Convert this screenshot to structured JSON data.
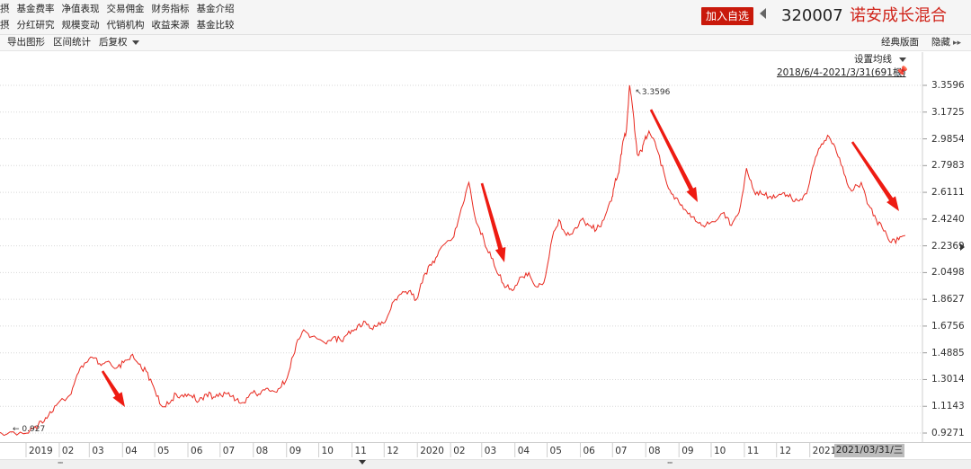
{
  "menu": {
    "row1_edge": "摂",
    "row1": [
      "基金费率",
      "净值表现",
      "交易佣金",
      "财务指标",
      "基金介绍"
    ],
    "row2_edge": "摂",
    "row2": [
      "分红研究",
      "规模变动",
      "代销机构",
      "收益来源",
      "基金比较"
    ]
  },
  "header": {
    "add_button": "加入自选",
    "fund_code": "320007",
    "fund_name": "诺安成长混合"
  },
  "toolbar": {
    "export": "导出图形",
    "interval_stats": "区间统计",
    "adjust": "后复权",
    "classic_layout": "经典版面",
    "hide": "隐藏"
  },
  "chart_controls": {
    "ma_setting": "设置均线",
    "range": "2018/6/4-2021/3/31(691根)"
  },
  "scrollbar": {
    "grip": "''''''"
  },
  "chart_data": {
    "type": "line",
    "y_tick_labels": [
      "3.3596",
      "3.1725",
      "2.9854",
      "2.7983",
      "2.6111",
      "2.4240",
      "2.2369",
      "2.0498",
      "1.8627",
      "1.6756",
      "1.4885",
      "1.3014",
      "1.1143",
      "0.9271"
    ],
    "ylim": [
      0.9271,
      3.3596
    ],
    "x_tick_labels": [
      "2019",
      "02",
      "03",
      "04",
      "05",
      "06",
      "07",
      "08",
      "09",
      "10",
      "11",
      "12",
      "2020",
      "02",
      "03",
      "04",
      "05",
      "06",
      "07",
      "08",
      "09",
      "10",
      "11",
      "12",
      "2021"
    ],
    "current_date_label": "2021/03/31/三",
    "annotations": {
      "max_label": "3.3596",
      "min_label": "0.927"
    },
    "line_color": "#e8281e",
    "arrow_color": "#ee1b12",
    "series": [
      {
        "x": [
          "2018-12-03",
          "2018-12-17",
          "2019-01-02",
          "2019-01-08",
          "2019-01-15",
          "2019-01-22",
          "2019-01-29",
          "2019-02-12",
          "2019-02-19",
          "2019-02-26",
          "2019-03-05",
          "2019-03-12",
          "2019-03-19",
          "2019-03-26",
          "2019-04-02",
          "2019-04-09",
          "2019-04-16",
          "2019-04-23",
          "2019-04-30",
          "2019-05-07",
          "2019-05-14",
          "2019-05-21",
          "2019-05-28",
          "2019-06-04",
          "2019-06-11",
          "2019-06-18",
          "2019-06-25",
          "2019-07-02",
          "2019-07-09",
          "2019-07-16",
          "2019-07-23",
          "2019-07-30",
          "2019-08-06",
          "2019-08-13",
          "2019-08-20",
          "2019-08-27",
          "2019-09-03",
          "2019-09-10",
          "2019-09-17",
          "2019-09-24",
          "2019-10-08",
          "2019-10-15",
          "2019-10-22",
          "2019-10-29",
          "2019-11-05",
          "2019-11-12",
          "2019-11-19",
          "2019-11-26",
          "2019-12-03",
          "2019-12-10",
          "2019-12-17",
          "2019-12-24",
          "2019-12-31",
          "2020-01-07",
          "2020-01-14",
          "2020-01-21",
          "2020-02-04",
          "2020-02-11",
          "2020-02-18",
          "2020-02-25",
          "2020-03-03",
          "2020-03-10",
          "2020-03-17",
          "2020-03-24",
          "2020-03-31",
          "2020-04-07",
          "2020-04-14",
          "2020-04-21",
          "2020-04-28",
          "2020-05-06",
          "2020-05-12",
          "2020-05-19",
          "2020-05-26",
          "2020-06-02",
          "2020-06-09",
          "2020-06-16",
          "2020-06-23",
          "2020-06-30",
          "2020-07-03",
          "2020-07-07",
          "2020-07-10",
          "2020-07-14",
          "2020-07-17",
          "2020-07-21",
          "2020-07-24",
          "2020-07-28",
          "2020-07-31",
          "2020-08-04",
          "2020-08-11",
          "2020-08-18",
          "2020-08-25",
          "2020-09-01",
          "2020-09-08",
          "2020-09-15",
          "2020-09-22",
          "2020-09-29",
          "2020-10-13",
          "2020-10-20",
          "2020-10-27",
          "2020-11-03",
          "2020-11-10",
          "2020-11-17",
          "2020-11-24",
          "2020-12-01",
          "2020-12-08",
          "2020-12-15",
          "2020-12-22",
          "2020-12-29",
          "2021-01-05",
          "2021-01-12",
          "2021-01-19",
          "2021-01-26",
          "2021-02-02",
          "2021-02-09",
          "2021-02-18",
          "2021-02-25",
          "2021-03-04",
          "2021-03-11",
          "2021-03-18",
          "2021-03-25",
          "2021-03-31"
        ],
        "y": [
          0.927,
          0.935,
          0.927,
          0.96,
          1.01,
          1.05,
          1.12,
          1.2,
          1.35,
          1.42,
          1.45,
          1.4,
          1.43,
          1.38,
          1.42,
          1.47,
          1.41,
          1.36,
          1.25,
          1.12,
          1.13,
          1.2,
          1.18,
          1.19,
          1.15,
          1.2,
          1.18,
          1.19,
          1.21,
          1.16,
          1.14,
          1.21,
          1.2,
          1.24,
          1.22,
          1.25,
          1.35,
          1.55,
          1.65,
          1.6,
          1.55,
          1.6,
          1.57,
          1.64,
          1.65,
          1.71,
          1.66,
          1.7,
          1.72,
          1.85,
          1.9,
          1.92,
          1.86,
          2.03,
          2.1,
          2.2,
          2.3,
          2.5,
          2.68,
          2.4,
          2.28,
          2.15,
          2.03,
          1.95,
          1.93,
          2.02,
          2.05,
          1.95,
          1.98,
          2.3,
          2.42,
          2.31,
          2.35,
          2.42,
          2.38,
          2.35,
          2.42,
          2.55,
          2.67,
          2.75,
          2.93,
          3.05,
          3.36,
          3.12,
          2.88,
          2.9,
          2.98,
          3.04,
          2.92,
          2.75,
          2.6,
          2.54,
          2.48,
          2.44,
          2.38,
          2.39,
          2.47,
          2.38,
          2.47,
          2.78,
          2.62,
          2.6,
          2.58,
          2.58,
          2.61,
          2.57,
          2.55,
          2.6,
          2.81,
          2.95,
          3.0,
          2.89,
          2.74,
          2.62,
          2.68,
          2.52,
          2.42,
          2.34,
          2.26,
          2.28,
          2.31
        ]
      }
    ]
  }
}
